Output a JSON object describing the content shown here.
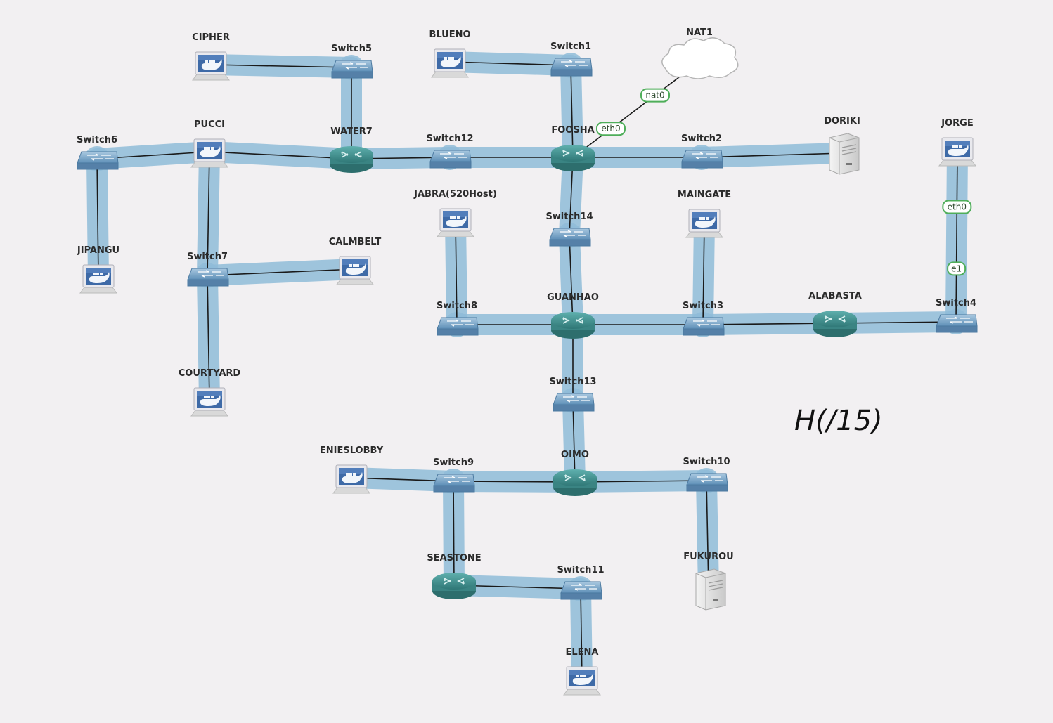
{
  "title": "",
  "handwritten_note": "H(/15)",
  "colors": {
    "background": "#f2f0f2",
    "highlight": "#8fbcd8",
    "link": "#1a1a1a",
    "router": "#3e8f8e",
    "switch": "#6f9fc4",
    "iface_border": "#4fae5a"
  },
  "nodes": [
    {
      "id": "CIPHER",
      "label": "CIPHER",
      "type": "host"
    },
    {
      "id": "Switch5",
      "label": "Switch5",
      "type": "switch"
    },
    {
      "id": "BLUENO",
      "label": "BLUENO",
      "type": "host"
    },
    {
      "id": "Switch1",
      "label": "Switch1",
      "type": "switch"
    },
    {
      "id": "NAT1",
      "label": "NAT1",
      "type": "cloud"
    },
    {
      "id": "Switch6",
      "label": "Switch6",
      "type": "switch"
    },
    {
      "id": "PUCCI",
      "label": "PUCCI",
      "type": "host"
    },
    {
      "id": "WATER7",
      "label": "WATER7",
      "type": "router"
    },
    {
      "id": "Switch12",
      "label": "Switch12",
      "type": "switch"
    },
    {
      "id": "FOOSHA",
      "label": "FOOSHA",
      "type": "router"
    },
    {
      "id": "Switch2",
      "label": "Switch2",
      "type": "switch"
    },
    {
      "id": "DORIKI",
      "label": "DORIKI",
      "type": "server"
    },
    {
      "id": "JORGE",
      "label": "JORGE",
      "type": "host"
    },
    {
      "id": "JIPANGU",
      "label": "JIPANGU",
      "type": "host"
    },
    {
      "id": "Switch7",
      "label": "Switch7",
      "type": "switch"
    },
    {
      "id": "CALMBELT",
      "label": "CALMBELT",
      "type": "host"
    },
    {
      "id": "JABRA",
      "label": "JABRA(520Host)",
      "type": "host"
    },
    {
      "id": "Switch14",
      "label": "Switch14",
      "type": "switch"
    },
    {
      "id": "MAINGATE",
      "label": "MAINGATE",
      "type": "host"
    },
    {
      "id": "Switch8",
      "label": "Switch8",
      "type": "switch"
    },
    {
      "id": "GUANHAO",
      "label": "GUANHAO",
      "type": "router"
    },
    {
      "id": "Switch3",
      "label": "Switch3",
      "type": "switch"
    },
    {
      "id": "ALABASTA",
      "label": "ALABASTA",
      "type": "router"
    },
    {
      "id": "Switch4",
      "label": "Switch4",
      "type": "switch"
    },
    {
      "id": "COURTYARD",
      "label": "COURTYARD",
      "type": "host"
    },
    {
      "id": "Switch13",
      "label": "Switch13",
      "type": "switch"
    },
    {
      "id": "ENIESLOBBY",
      "label": "ENIESLOBBY",
      "type": "host"
    },
    {
      "id": "Switch9",
      "label": "Switch9",
      "type": "switch"
    },
    {
      "id": "OIMO",
      "label": "OIMO",
      "type": "router"
    },
    {
      "id": "Switch10",
      "label": "Switch10",
      "type": "switch"
    },
    {
      "id": "SEASTONE",
      "label": "SEASTONE",
      "type": "router"
    },
    {
      "id": "Switch11",
      "label": "Switch11",
      "type": "switch"
    },
    {
      "id": "FUKUROU",
      "label": "FUKUROU",
      "type": "server"
    },
    {
      "id": "ELENA",
      "label": "ELENA",
      "type": "host"
    }
  ],
  "links": [
    {
      "from": "CIPHER",
      "to": "Switch5"
    },
    {
      "from": "Switch5",
      "to": "WATER7"
    },
    {
      "from": "BLUENO",
      "to": "Switch1"
    },
    {
      "from": "Switch1",
      "to": "FOOSHA"
    },
    {
      "from": "FOOSHA",
      "to": "NAT1",
      "iface_a": "eth0",
      "iface_b": "nat0"
    },
    {
      "from": "Switch6",
      "to": "PUCCI"
    },
    {
      "from": "PUCCI",
      "to": "WATER7"
    },
    {
      "from": "WATER7",
      "to": "Switch12"
    },
    {
      "from": "Switch12",
      "to": "FOOSHA"
    },
    {
      "from": "FOOSHA",
      "to": "Switch2"
    },
    {
      "from": "Switch2",
      "to": "DORIKI"
    },
    {
      "from": "Switch6",
      "to": "JIPANGU"
    },
    {
      "from": "PUCCI",
      "to": "Switch7"
    },
    {
      "from": "Switch7",
      "to": "CALMBELT"
    },
    {
      "from": "Switch7",
      "to": "COURTYARD"
    },
    {
      "from": "FOOSHA",
      "to": "Switch14"
    },
    {
      "from": "Switch14",
      "to": "GUANHAO"
    },
    {
      "from": "JABRA",
      "to": "Switch8"
    },
    {
      "from": "Switch8",
      "to": "GUANHAO"
    },
    {
      "from": "GUANHAO",
      "to": "Switch3"
    },
    {
      "from": "MAINGATE",
      "to": "Switch3"
    },
    {
      "from": "Switch3",
      "to": "ALABASTA"
    },
    {
      "from": "ALABASTA",
      "to": "Switch4"
    },
    {
      "from": "JORGE",
      "to": "Switch4",
      "iface_a": "eth0",
      "iface_b": "e1"
    },
    {
      "from": "GUANHAO",
      "to": "Switch13"
    },
    {
      "from": "Switch13",
      "to": "OIMO"
    },
    {
      "from": "ENIESLOBBY",
      "to": "Switch9"
    },
    {
      "from": "Switch9",
      "to": "OIMO"
    },
    {
      "from": "OIMO",
      "to": "Switch10"
    },
    {
      "from": "Switch10",
      "to": "FUKUROU"
    },
    {
      "from": "Switch9",
      "to": "SEASTONE"
    },
    {
      "from": "SEASTONE",
      "to": "Switch11"
    },
    {
      "from": "Switch11",
      "to": "ELENA"
    }
  ]
}
